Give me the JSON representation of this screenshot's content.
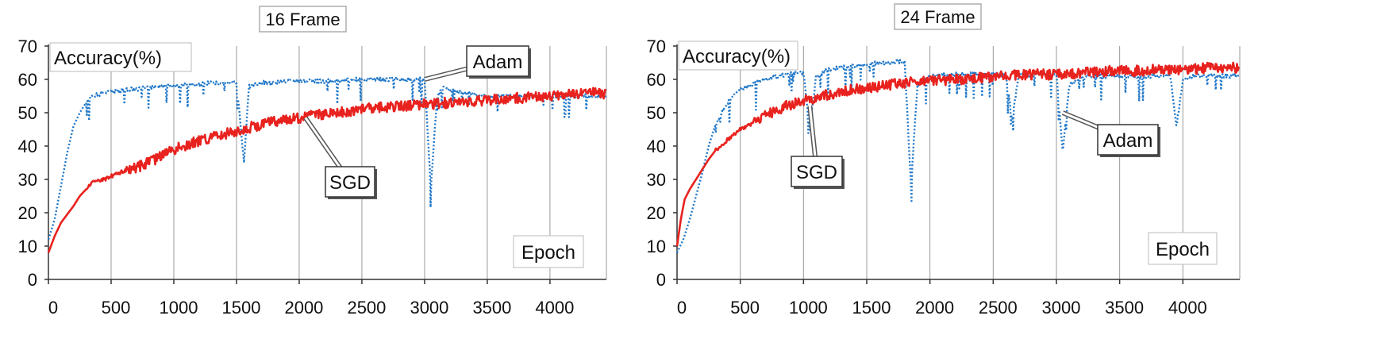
{
  "chart_data": [
    {
      "type": "line",
      "title": "16 Frame",
      "ylabel": "Accuracy(%)",
      "xlabel": "Epoch",
      "xlim": [
        0,
        4450
      ],
      "ylim": [
        0,
        70
      ],
      "xticks": [
        0,
        500,
        1000,
        1500,
        2000,
        2500,
        3000,
        3500,
        4000
      ],
      "yticks": [
        0,
        10,
        20,
        30,
        40,
        50,
        60,
        70
      ],
      "grid": "vertical",
      "series": [
        {
          "name": "Adam",
          "style": "dotted",
          "color": "#1f77c8",
          "x": [
            0,
            50,
            100,
            150,
            200,
            250,
            300,
            350,
            400,
            450,
            500,
            550,
            600,
            700,
            800,
            900,
            1000,
            1100,
            1200,
            1300,
            1400,
            1500,
            1560,
            1600,
            1650,
            1700,
            1800,
            1900,
            2000,
            2100,
            2200,
            2300,
            2400,
            2500,
            2600,
            2700,
            2800,
            2900,
            3000,
            3050,
            3100,
            3150,
            3200,
            3300,
            3400,
            3500,
            3600,
            3700,
            3800,
            3900,
            4000,
            4100,
            4200,
            4300,
            4400,
            4450
          ],
          "y": [
            12,
            18,
            28,
            38,
            46,
            50,
            53,
            55,
            55.5,
            56,
            56.5,
            56.5,
            57,
            57,
            57.5,
            58,
            58,
            58.5,
            58.5,
            59,
            59,
            59,
            35,
            58,
            58.5,
            59,
            59,
            59.5,
            59.5,
            59.5,
            59.5,
            59.5,
            60,
            60,
            60,
            60,
            60,
            60,
            60,
            28,
            55,
            58,
            57,
            56,
            55.5,
            55,
            55,
            55,
            55,
            55,
            55,
            55,
            55,
            55,
            55,
            55
          ]
        },
        {
          "name": "SGD",
          "style": "solid",
          "color": "#e8221e",
          "x": [
            0,
            50,
            100,
            150,
            200,
            250,
            300,
            350,
            400,
            450,
            500,
            600,
            700,
            800,
            900,
            1000,
            1200,
            1400,
            1600,
            1800,
            2000,
            2200,
            2400,
            2600,
            2800,
            3000,
            3200,
            3400,
            3600,
            3800,
            4000,
            4200,
            4400,
            4450
          ],
          "y": [
            8,
            13,
            17,
            19.5,
            22,
            25,
            27,
            29,
            29.5,
            30,
            31,
            32.5,
            33.5,
            35,
            37,
            39,
            41.5,
            43.5,
            45.5,
            47.5,
            48.5,
            49.5,
            50.5,
            51.5,
            52,
            52.5,
            53,
            53.5,
            54,
            54.5,
            55,
            55.5,
            56,
            55.5
          ]
        }
      ],
      "annotations": [
        "Adam",
        "SGD"
      ]
    },
    {
      "type": "line",
      "title": "24 Frame",
      "ylabel": "Accuracy(%)",
      "xlabel": "Epoch",
      "xlim": [
        0,
        4450
      ],
      "ylim": [
        0,
        70
      ],
      "xticks": [
        0,
        500,
        1000,
        1500,
        2000,
        2500,
        3000,
        3500,
        4000
      ],
      "yticks": [
        0,
        10,
        20,
        30,
        40,
        50,
        60,
        70
      ],
      "grid": "vertical",
      "series": [
        {
          "name": "Adam",
          "style": "dotted",
          "color": "#1f77c8",
          "x": [
            0,
            50,
            100,
            150,
            200,
            250,
            300,
            350,
            400,
            450,
            500,
            600,
            700,
            800,
            900,
            1000,
            1050,
            1100,
            1200,
            1300,
            1400,
            1500,
            1600,
            1700,
            1800,
            1850,
            1900,
            1950,
            2000,
            2100,
            2200,
            2300,
            2400,
            2500,
            2600,
            2650,
            2700,
            2800,
            2900,
            3000,
            3050,
            3100,
            3200,
            3300,
            3400,
            3500,
            3600,
            3700,
            3800,
            3900,
            3950,
            4000,
            4100,
            4200,
            4300,
            4400,
            4450
          ],
          "y": [
            8,
            12,
            18,
            25,
            32,
            40,
            46,
            50,
            53,
            55,
            57,
            58.5,
            60,
            61,
            62,
            62,
            45,
            61,
            63,
            63.5,
            64,
            64.5,
            65,
            65,
            65.5,
            28,
            58,
            60,
            61,
            61.5,
            61.5,
            61.5,
            61.5,
            61.5,
            61.5,
            48,
            61,
            61.5,
            61.5,
            61.5,
            38,
            58,
            61,
            61,
            61,
            61,
            61,
            61,
            61,
            61,
            46,
            60,
            61,
            61,
            61,
            61,
            61
          ]
        },
        {
          "name": "SGD",
          "style": "solid",
          "color": "#e8221e",
          "x": [
            0,
            30,
            60,
            100,
            150,
            200,
            250,
            300,
            400,
            500,
            600,
            700,
            800,
            900,
            1000,
            1200,
            1400,
            1600,
            1800,
            2000,
            2200,
            2400,
            2600,
            2800,
            3000,
            3200,
            3400,
            3600,
            3800,
            4000,
            4200,
            4400,
            4450
          ],
          "y": [
            10,
            18,
            24,
            27,
            30,
            33,
            36,
            38.5,
            42,
            45,
            47,
            49,
            51,
            52.5,
            53.5,
            55.5,
            57,
            58,
            59,
            59.5,
            60,
            60.5,
            61,
            61.5,
            61.5,
            62,
            62.5,
            62.5,
            63,
            63,
            63.5,
            63.5,
            63.5
          ]
        }
      ],
      "annotations": [
        "Adam",
        "SGD"
      ]
    }
  ]
}
